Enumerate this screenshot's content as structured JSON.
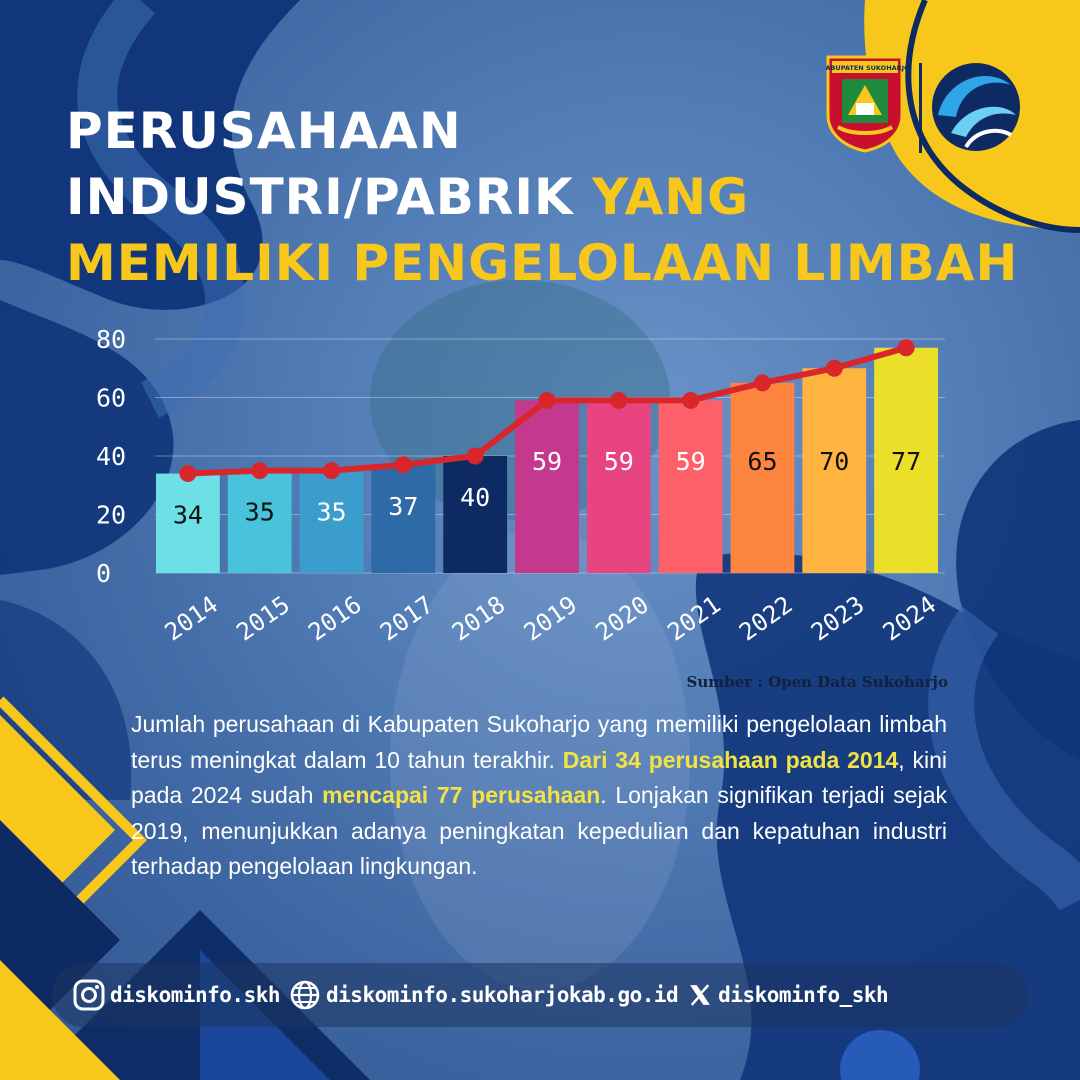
{
  "title": {
    "line1": "PERUSAHAAN",
    "line2_white": "INDUSTRI/PABRIK ",
    "line2_yellow": "YANG",
    "line3": "MEMILIKI PENGELOLAAN LIMBAH"
  },
  "logos": {
    "regency_logo_text": "KABUPATEN SUKOHARJO",
    "regency_logo_icon": "sukoharjo-crest-icon",
    "ministry_logo_icon": "kominfo-logo-icon"
  },
  "colors": {
    "accent_yellow": "#f7c81b",
    "highlight_yellow": "#f2e244",
    "navy": "#0d2a63",
    "line_red": "#d9262b"
  },
  "chart_data": {
    "type": "bar",
    "title": "",
    "xlabel": "",
    "ylabel": "",
    "ylim": [
      0,
      80
    ],
    "yticks": [
      0,
      20,
      40,
      60,
      80
    ],
    "grid": true,
    "categories": [
      "2014",
      "2015",
      "2016",
      "2017",
      "2018",
      "2019",
      "2020",
      "2021",
      "2022",
      "2023",
      "2024"
    ],
    "values": [
      34,
      35,
      35,
      37,
      40,
      59,
      59,
      59,
      65,
      70,
      77
    ],
    "bar_colors": [
      "#6de0e6",
      "#49c3dc",
      "#3a9dcb",
      "#2e6aa6",
      "#0d2a63",
      "#c4398e",
      "#e84482",
      "#fe6069",
      "#fe8540",
      "#ffb43f",
      "#ecdf2a"
    ],
    "label_colors": [
      "#111111",
      "#111111",
      "#ffffff",
      "#ffffff",
      "#ffffff",
      "#ffffff",
      "#ffffff",
      "#ffffff",
      "#111111",
      "#111111",
      "#111111"
    ],
    "overlay_line": {
      "type": "line",
      "color": "#d9262b",
      "values": [
        34,
        35,
        35,
        37,
        40,
        59,
        59,
        59,
        65,
        70,
        77
      ]
    }
  },
  "source": "Sumber : Open Data Sukoharjo",
  "description": {
    "part1": "Jumlah perusahaan di Kabupaten Sukoharjo yang memiliki pengelolaan limbah terus meningkat dalam 10 tahun terakhir. ",
    "hl1": "Dari 34 perusahaan pada 2014",
    "part2": ", kini pada 2024 sudah ",
    "hl2": "mencapai 77 perusahaan",
    "part3": ". Lonjakan signifikan terjadi sejak 2019, menunjukkan adanya peningkatan kepedulian dan kepatuhan industri terhadap pengelolaan lingkungan."
  },
  "footer": {
    "instagram": {
      "icon": "instagram-icon",
      "label": "diskominfo.skh"
    },
    "website": {
      "icon": "globe-icon",
      "label": "diskominfo.sukoharjokab.go.id"
    },
    "x": {
      "icon": "x-logo-icon",
      "label": "diskominfo_skh"
    }
  }
}
